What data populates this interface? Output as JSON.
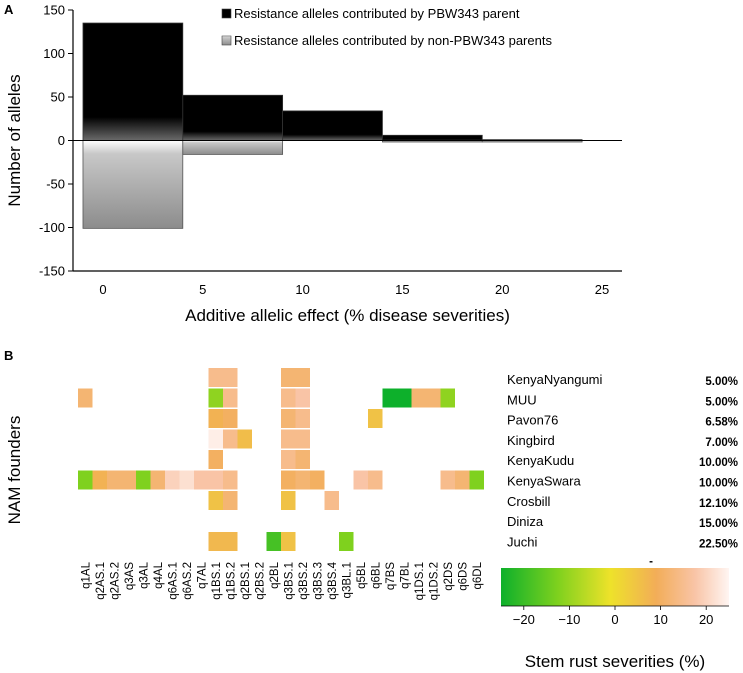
{
  "panel_a_label": "A",
  "panel_b_label": "B",
  "chart_data": [
    {
      "type": "bar",
      "title": "",
      "xlabel": "Additive allelic effect (% disease severities)",
      "ylabel": "Number of alleles",
      "xlim": [
        -1.5,
        26
      ],
      "ylim": [
        -150,
        150
      ],
      "x_ticks": [
        0,
        5,
        10,
        15,
        20,
        25
      ],
      "y_ticks": [
        150,
        100,
        50,
        0,
        -50,
        -100,
        -150
      ],
      "bin_edges": [
        -1,
        4,
        9,
        14,
        19,
        24
      ],
      "series": [
        {
          "name": "Resistance alleles contributed by PBW343 parent",
          "color": "#000000",
          "values": [
            135,
            52,
            34,
            6,
            1
          ]
        },
        {
          "name": "Resistance alleles contributed by non-PBW343 parents",
          "color": "#9a9a9a",
          "values": [
            -101,
            -16,
            0,
            -1,
            -1
          ]
        }
      ],
      "legend_position": "top-right"
    },
    {
      "type": "heatmap",
      "ylabel": "NAM founders",
      "qtl_labels": [
        "q1AL",
        "q2AS.1",
        "q2AS.2",
        "q3AS",
        "q3AL",
        "q4AL",
        "q6AS.1",
        "q6AS.2",
        "q7AL",
        "q1BS.1",
        "q1BS.2",
        "q2BS.1",
        "q2BS.2",
        "q2BL",
        "q3BS.1",
        "q3BS.2",
        "q3BS.3",
        "q3BS.4",
        "q3BL.1",
        "q5BL",
        "q6BL",
        "q7BS",
        "q7BL",
        "q1DS.1",
        "q1DS.2",
        "q2DS",
        "q6DS",
        "q6DL"
      ],
      "founders": [
        {
          "name": "KenyaNyangumi",
          "percent": "5.00%"
        },
        {
          "name": "MUU",
          "percent": "5.00%"
        },
        {
          "name": "Pavon76",
          "percent": "6.58%"
        },
        {
          "name": "Kingbird",
          "percent": "7.00%"
        },
        {
          "name": "KenyaKudu",
          "percent": "10.00%"
        },
        {
          "name": "KenyaSwara",
          "percent": "10.00%"
        },
        {
          "name": "Crosbill",
          "percent": "12.10%"
        },
        {
          "name": "Diniza",
          "percent": "15.00%"
        },
        {
          "name": "Juchi",
          "percent": "22.50%"
        }
      ],
      "extra_mark": "-",
      "values": [
        [
          null,
          null,
          null,
          null,
          null,
          null,
          null,
          null,
          null,
          15,
          15,
          null,
          null,
          null,
          12,
          12,
          null,
          null,
          null,
          null,
          null,
          null,
          null,
          null,
          null,
          null,
          null,
          null
        ],
        [
          12,
          null,
          null,
          null,
          null,
          null,
          null,
          null,
          null,
          -13,
          15,
          null,
          null,
          null,
          15,
          18,
          null,
          null,
          null,
          null,
          null,
          -25,
          -25,
          12,
          12,
          -13,
          null,
          null
        ],
        [
          null,
          null,
          null,
          null,
          null,
          null,
          null,
          null,
          null,
          8,
          10,
          null,
          null,
          null,
          12,
          15,
          null,
          null,
          null,
          null,
          5,
          null,
          null,
          null,
          null,
          null,
          null,
          null
        ],
        [
          null,
          null,
          null,
          null,
          null,
          null,
          null,
          null,
          null,
          24,
          15,
          6,
          null,
          null,
          15,
          15,
          null,
          null,
          null,
          null,
          null,
          null,
          null,
          null,
          null,
          null,
          null,
          null
        ],
        [
          null,
          null,
          null,
          null,
          null,
          null,
          null,
          null,
          null,
          10,
          null,
          null,
          null,
          null,
          15,
          12,
          null,
          null,
          null,
          null,
          null,
          null,
          null,
          null,
          null,
          null,
          null,
          null
        ],
        [
          -15,
          8,
          12,
          12,
          -15,
          12,
          20,
          22,
          18,
          18,
          15,
          null,
          null,
          null,
          10,
          12,
          10,
          null,
          null,
          18,
          15,
          null,
          null,
          null,
          null,
          15,
          12,
          -15
        ],
        [
          null,
          null,
          null,
          null,
          null,
          null,
          null,
          null,
          null,
          5,
          12,
          null,
          null,
          null,
          5,
          null,
          null,
          15,
          null,
          null,
          null,
          null,
          null,
          null,
          null,
          null,
          null,
          null
        ],
        [
          null,
          null,
          null,
          null,
          null,
          null,
          null,
          null,
          null,
          null,
          null,
          null,
          null,
          null,
          null,
          null,
          null,
          null,
          null,
          null,
          null,
          null,
          null,
          null,
          null,
          null,
          null,
          null
        ],
        [
          null,
          null,
          null,
          null,
          null,
          null,
          null,
          null,
          null,
          7,
          7,
          null,
          null,
          -20,
          5,
          null,
          null,
          null,
          -15,
          null,
          null,
          null,
          null,
          null,
          null,
          null,
          null,
          null
        ]
      ],
      "colorbar": {
        "label": "Stem rust severities (%)",
        "range": [
          -25,
          25
        ],
        "ticks": [
          -20,
          -10,
          0,
          10,
          20
        ],
        "tick_labels": [
          "−20",
          "−10",
          "0",
          "10",
          "20"
        ],
        "colors": [
          "#0db02b",
          "#7fd11e",
          "#eee22a",
          "#f2ad58",
          "#f9c4a6",
          "#fff5f2"
        ]
      }
    }
  ]
}
